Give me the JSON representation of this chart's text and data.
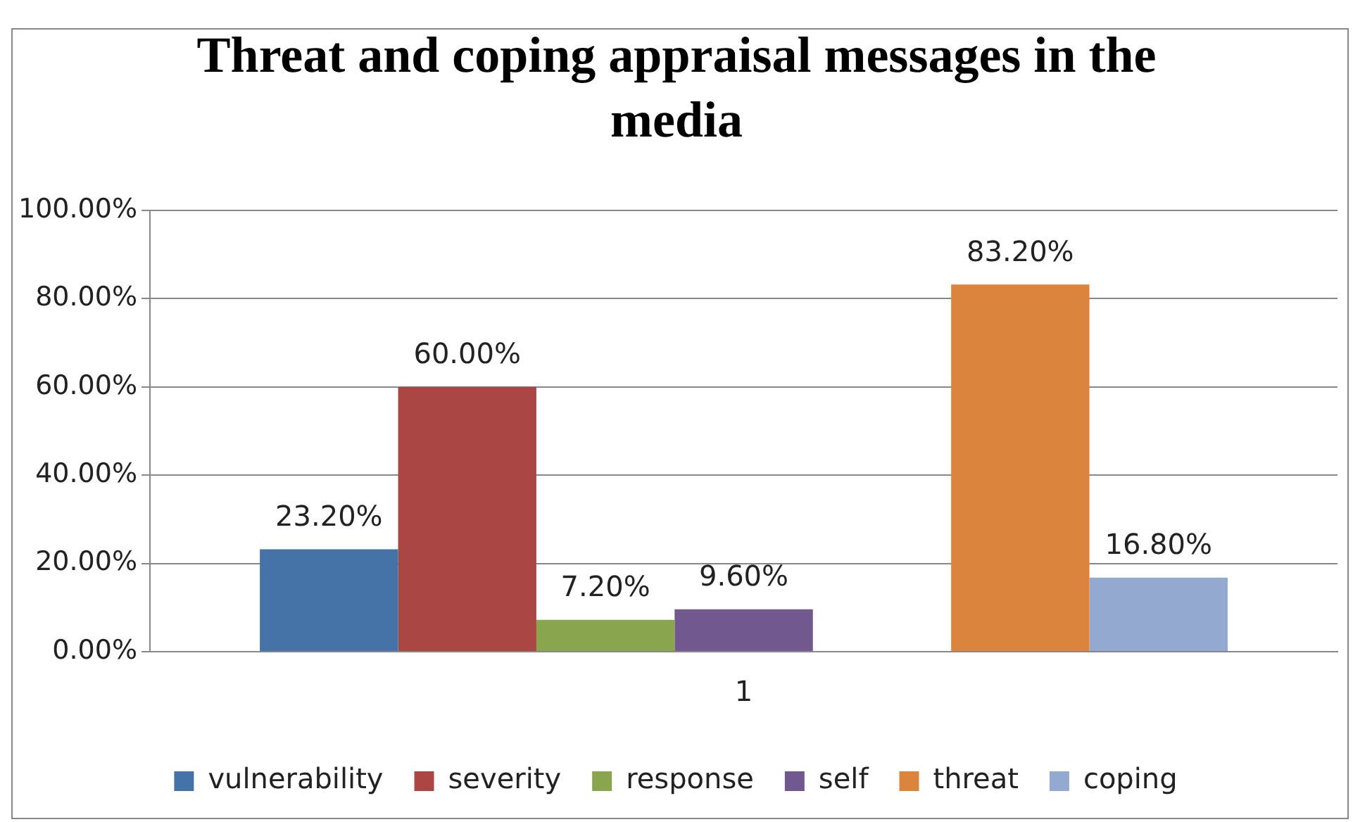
{
  "chart_data": {
    "type": "bar",
    "title": "Threat and coping appraisal messages in the media",
    "categories": [
      "1"
    ],
    "series": [
      {
        "name": "vulnerability",
        "color": "#4572a7",
        "values": [
          23.2
        ],
        "value_labels": [
          "23.20%"
        ]
      },
      {
        "name": "severity",
        "color": "#aa4643",
        "values": [
          60.0
        ],
        "value_labels": [
          "60.00%"
        ]
      },
      {
        "name": "response",
        "color": "#89a54e",
        "values": [
          7.2
        ],
        "value_labels": [
          "7.20%"
        ]
      },
      {
        "name": "self",
        "color": "#71588f",
        "values": [
          9.6
        ],
        "value_labels": [
          "9.60%"
        ]
      },
      {
        "values": [
          null
        ]
      },
      {
        "name": "threat",
        "color": "#db843d",
        "values": [
          83.2
        ],
        "value_labels": [
          "83.20%"
        ]
      },
      {
        "name": "coping",
        "color": "#93a9cf",
        "values": [
          16.8
        ],
        "value_labels": [
          "16.80%"
        ]
      }
    ],
    "ylim": [
      0,
      100
    ],
    "yticks": [
      {
        "value": 0,
        "label": "0.00%"
      },
      {
        "value": 20,
        "label": "20.00%"
      },
      {
        "value": 40,
        "label": "40.00%"
      },
      {
        "value": 60,
        "label": "60.00%"
      },
      {
        "value": 80,
        "label": "80.00%"
      },
      {
        "value": 100,
        "label": "100.00%"
      }
    ],
    "grid": "y",
    "legend": "bottom"
  }
}
